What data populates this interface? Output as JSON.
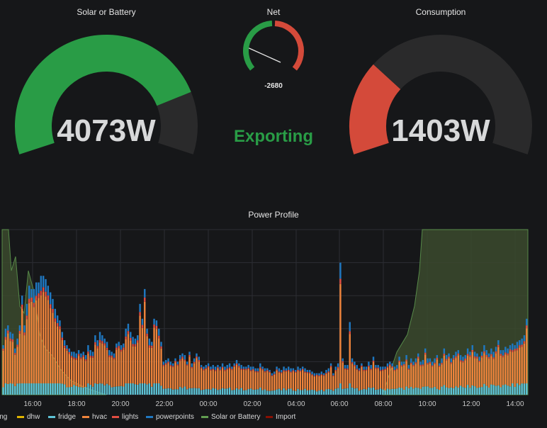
{
  "panels": {
    "solar": {
      "title": "Solar or Battery",
      "value": "4073W",
      "fill_fraction": 0.815,
      "bar_color": "#299c46",
      "track_color": "#2a2a2b"
    },
    "net": {
      "title": "Net",
      "value": "-2680",
      "status": "Exporting",
      "status_color": "#299c46",
      "green_color": "#299c46",
      "red_color": "#d44a3a",
      "needle_fraction": 0.18
    },
    "consumption": {
      "title": "Consumption",
      "value": "1403W",
      "fill_fraction": 0.28,
      "bar_color": "#d44a3a",
      "track_color": "#2a2a2b"
    }
  },
  "power_profile": {
    "title": "Power Profile",
    "legend": [
      {
        "label": "king",
        "color": "#b877d9"
      },
      {
        "label": "dhw",
        "color": "#e0b400"
      },
      {
        "label": "fridge",
        "color": "#5ec3d6"
      },
      {
        "label": "hvac",
        "color": "#ef843c"
      },
      {
        "label": "lights",
        "color": "#e24d42"
      },
      {
        "label": "powerpoints",
        "color": "#1f78c1"
      },
      {
        "label": "Solar or Battery",
        "color": "#629e51"
      },
      {
        "label": "Import",
        "color": "#890f02"
      }
    ],
    "x_ticks": [
      "16:00",
      "18:00",
      "20:00",
      "22:00",
      "00:00",
      "02:00",
      "04:00",
      "06:00",
      "08:00",
      "10:00",
      "12:00",
      "14:00"
    ]
  },
  "chart_data": {
    "type": "bar",
    "title": "Power Profile",
    "x_ticks": [
      "16:00",
      "18:00",
      "20:00",
      "22:00",
      "00:00",
      "02:00",
      "04:00",
      "06:00",
      "08:00",
      "10:00",
      "12:00",
      "14:00"
    ],
    "series_names": [
      "fridge",
      "hvac",
      "lights",
      "powerpoints"
    ],
    "stack_profile": [
      0.3,
      0.4,
      0.42,
      0.38,
      0.37,
      0.28,
      0.34,
      0.42,
      0.6,
      0.42,
      0.55,
      0.66,
      0.64,
      0.64,
      0.68,
      0.68,
      0.72,
      0.72,
      0.7,
      0.66,
      0.62,
      0.58,
      0.52,
      0.48,
      0.45,
      0.38,
      0.33,
      0.3,
      0.28,
      0.26,
      0.26,
      0.25,
      0.27,
      0.25,
      0.26,
      0.24,
      0.3,
      0.27,
      0.26,
      0.36,
      0.33,
      0.38,
      0.36,
      0.34,
      0.32,
      0.27,
      0.26,
      0.25,
      0.31,
      0.32,
      0.3,
      0.31,
      0.4,
      0.43,
      0.38,
      0.35,
      0.34,
      0.36,
      0.55,
      0.46,
      0.64,
      0.4,
      0.34,
      0.32,
      0.46,
      0.45,
      0.4,
      0.32,
      0.2,
      0.21,
      0.22,
      0.2,
      0.19,
      0.22,
      0.2,
      0.24,
      0.25,
      0.24,
      0.2,
      0.26,
      0.19,
      0.22,
      0.25,
      0.23,
      0.18,
      0.17,
      0.18,
      0.19,
      0.17,
      0.18,
      0.17,
      0.18,
      0.17,
      0.19,
      0.17,
      0.18,
      0.19,
      0.17,
      0.19,
      0.21,
      0.19,
      0.18,
      0.17,
      0.17,
      0.18,
      0.17,
      0.17,
      0.16,
      0.16,
      0.19,
      0.17,
      0.16,
      0.16,
      0.15,
      0.13,
      0.14,
      0.17,
      0.16,
      0.15,
      0.17,
      0.16,
      0.17,
      0.16,
      0.16,
      0.15,
      0.17,
      0.16,
      0.17,
      0.16,
      0.15,
      0.15,
      0.14,
      0.13,
      0.13,
      0.13,
      0.14,
      0.13,
      0.15,
      0.16,
      0.19,
      0.13,
      0.17,
      0.19,
      0.8,
      0.22,
      0.18,
      0.18,
      0.44,
      0.22,
      0.2,
      0.18,
      0.16,
      0.19,
      0.17,
      0.17,
      0.2,
      0.18,
      0.23,
      0.18,
      0.18,
      0.17,
      0.17,
      0.17,
      0.19,
      0.2,
      0.19,
      0.17,
      0.18,
      0.23,
      0.2,
      0.2,
      0.24,
      0.18,
      0.22,
      0.2,
      0.22,
      0.25,
      0.2,
      0.21,
      0.28,
      0.22,
      0.22,
      0.2,
      0.22,
      0.24,
      0.19,
      0.22,
      0.28,
      0.24,
      0.25,
      0.22,
      0.24,
      0.26,
      0.27,
      0.24,
      0.23,
      0.24,
      0.28,
      0.26,
      0.3,
      0.26,
      0.25,
      0.23,
      0.26,
      0.3,
      0.27,
      0.25,
      0.28,
      0.26,
      0.29,
      0.33,
      0.27,
      0.27,
      0.29,
      0.28,
      0.3,
      0.31,
      0.3,
      0.32,
      0.33,
      0.34,
      0.36,
      0.46
    ],
    "solar_area_note": "Solar or Battery area high at far left (~15:00) and rising sharply from ~09:00 to the right edge"
  },
  "colors": {
    "fridge": "#5ec3d6",
    "hvac": "#ef843c",
    "lights": "#e24d42",
    "powerpoints": "#1f78c1",
    "solar_fill": "#3b4a2e",
    "solar_line": "#629e51",
    "grid": "#2c2e33"
  }
}
